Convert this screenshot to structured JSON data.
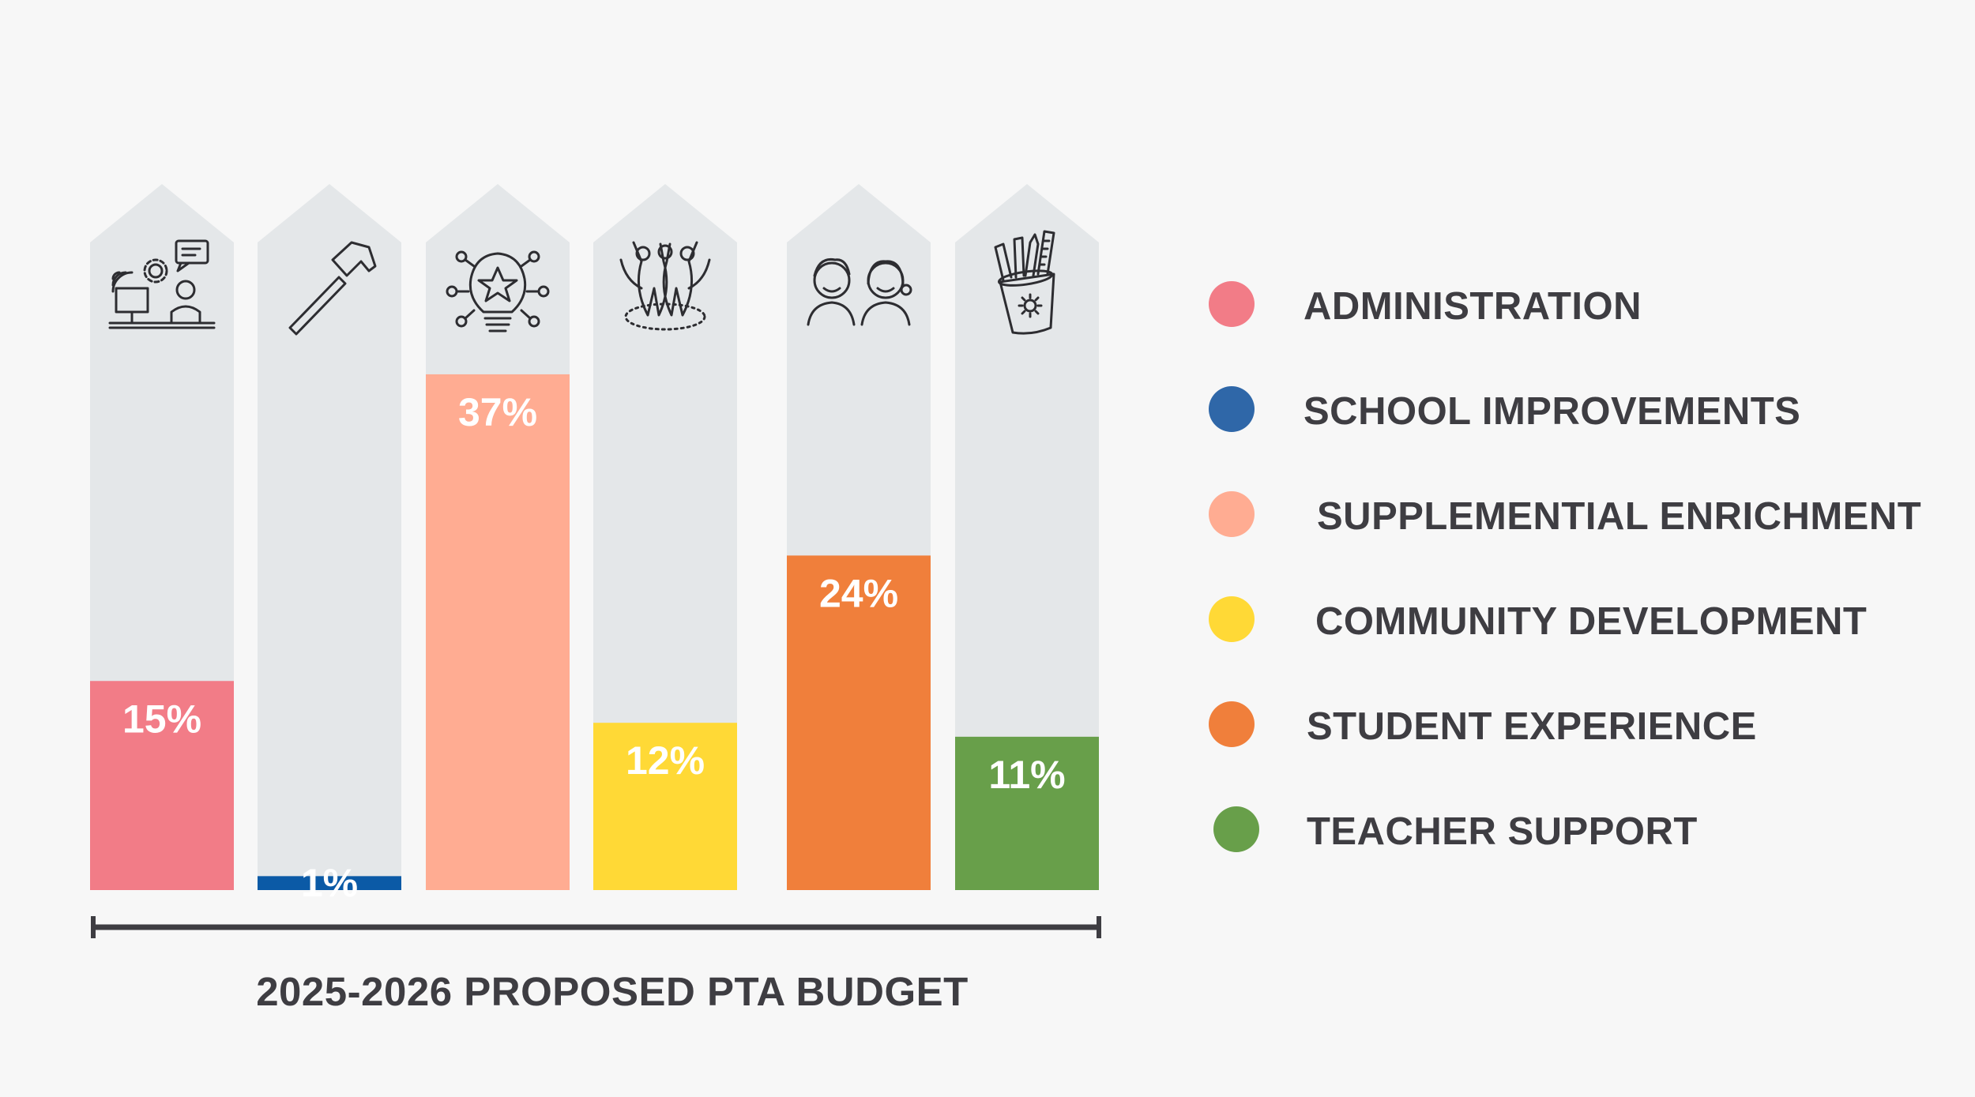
{
  "chart_data": {
    "type": "bar",
    "categories": [
      "ADMINISTRATION",
      "SCHOOL IMPROVEMENTS",
      "SUPPLEMENTIAL ENRICHMENT",
      "COMMUNITY DEVELOPMENT",
      "STUDENT EXPERIENCE",
      "TEACHER SUPPORT"
    ],
    "values": [
      15,
      1,
      37,
      12,
      24,
      11
    ],
    "value_labels": [
      "15%",
      "1%",
      "37%",
      "12%",
      "24%",
      "11%"
    ],
    "xlabel": "2025-2026 PROPOSED PTA BUDGET",
    "ylim": [
      0,
      50
    ],
    "legend_placement": "right",
    "grid": false
  },
  "legend": {
    "items": [
      {
        "label": "ADMINISTRATION",
        "color": "#f27c87"
      },
      {
        "label": "SCHOOL IMPROVEMENTS",
        "color": "#2f67a8"
      },
      {
        "label": "SUPPLEMENTIAL ENRICHMENT",
        "color": "#ffac92"
      },
      {
        "label": "COMMUNITY DEVELOPMENT",
        "color": "#ffd936"
      },
      {
        "label": "STUDENT EXPERIENCE",
        "color": "#f07f3b"
      },
      {
        "label": "TEACHER SUPPORT",
        "color": "#689f4a"
      }
    ]
  },
  "bar_colors": [
    "#f27c87",
    "#0b5aa6",
    "#ffac92",
    "#ffd936",
    "#f07f3b",
    "#689f4a"
  ],
  "icons": [
    "office-worker-icon",
    "hammer-icon",
    "lightbulb-idea-icon",
    "community-people-icon",
    "children-icon",
    "pencil-cup-icon"
  ],
  "colors": {
    "track": "#e4e7e9",
    "axis": "#3e3d42",
    "value_label": "#ffffff",
    "icon_stroke": "#2d2d31"
  }
}
